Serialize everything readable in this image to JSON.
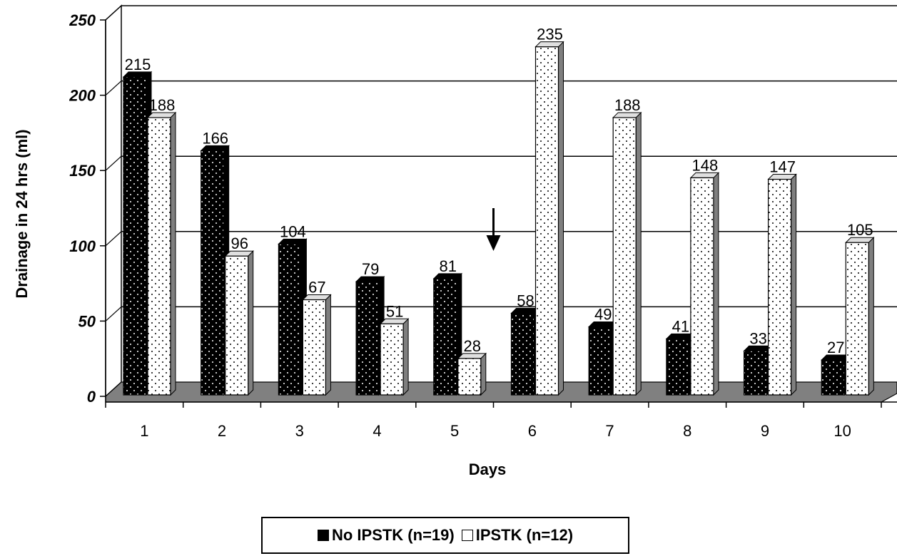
{
  "chart_data": {
    "type": "bar",
    "title": "",
    "xlabel": "Days",
    "ylabel": "Drainage in 24 hrs (ml)",
    "ylim": [
      0,
      250
    ],
    "yticks": [
      0,
      50,
      100,
      150,
      200,
      250
    ],
    "grid": true,
    "legend_position": "bottom",
    "categories": [
      "1",
      "2",
      "3",
      "4",
      "5",
      "6",
      "7",
      "8",
      "9",
      "10"
    ],
    "series": [
      {
        "name": "No IPSTK (n=19)",
        "color": "#000000",
        "values": [
          215,
          166,
          104,
          79,
          81,
          58,
          49,
          41,
          33,
          27
        ]
      },
      {
        "name": "IPSTK (n=12)",
        "color": "#ffffff",
        "values": [
          188,
          96,
          67,
          51,
          28,
          235,
          188,
          148,
          147,
          105
        ]
      }
    ],
    "annotations": [
      "arrow between day 5 and day 6"
    ]
  }
}
